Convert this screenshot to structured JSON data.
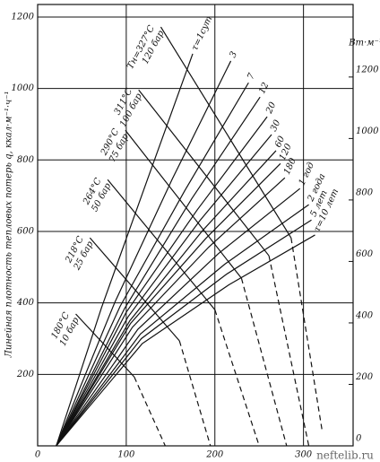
{
  "chart_data": {
    "type": "line",
    "ylabel": "Линейная плотность тепловых потерь q, ккал·м⁻¹·ч⁻¹",
    "y2label": "Вт·м⁻¹",
    "xlim": [
      0,
      356
    ],
    "ylim": [
      0,
      1235
    ],
    "y2lim": [
      0,
      1436
    ],
    "xticks": [
      0,
      100,
      200,
      300
    ],
    "yticks": [
      200,
      400,
      600,
      800,
      1000,
      1200
    ],
    "y2ticks": [
      0,
      200,
      400,
      600,
      800,
      1000,
      1200
    ],
    "grid": true,
    "color": "#111111",
    "series": [
      {
        "name": "τ=1сут",
        "x": [
          21,
          72,
          124,
          175
        ],
        "values": [
          0,
          386,
          746,
          1097
        ]
      },
      {
        "name": "3",
        "x": [
          21,
          87,
          152,
          218
        ],
        "values": [
          0,
          401,
          747,
          1077
        ]
      },
      {
        "name": "7",
        "x": [
          21,
          93,
          166,
          238
        ],
        "values": [
          0,
          390,
          714,
          1016
        ]
      },
      {
        "name": "12",
        "x": [
          21,
          98,
          174,
          251
        ],
        "values": [
          0,
          384,
          692,
          976
        ]
      },
      {
        "name": "20",
        "x": [
          21,
          100,
          180,
          259
        ],
        "values": [
          0,
          374,
          660,
          921
        ]
      },
      {
        "name": "30",
        "x": [
          21,
          102,
          183,
          264
        ],
        "values": [
          0,
          361,
          630,
          871
        ]
      },
      {
        "name": "60",
        "x": [
          21,
          104,
          186,
          269
        ],
        "values": [
          0,
          350,
          602,
          826
        ]
      },
      {
        "name": "120",
        "x": [
          21,
          105,
          190,
          274
        ],
        "values": [
          0,
          343,
          581,
          790
        ]
      },
      {
        "name": "180",
        "x": [
          21,
          107,
          193,
          279
        ],
        "values": [
          0,
          332,
          556,
          750
        ]
      },
      {
        "name": "1 год",
        "x": [
          21,
          113,
          204,
          296
        ],
        "values": [
          0,
          326,
          538,
          720
        ]
      },
      {
        "name": "2 года",
        "x": [
          21,
          116,
          211,
          306
        ],
        "values": [
          0,
          313,
          508,
          675
        ]
      },
      {
        "name": "5 лет",
        "x": [
          21,
          117,
          213,
          309
        ],
        "values": [
          0,
          300,
          480,
          632
        ]
      },
      {
        "name": "τ=10 лет",
        "x": [
          21,
          118,
          216,
          313
        ],
        "values": [
          0,
          286,
          451,
          590
        ]
      }
    ],
    "steam_lines": [
      {
        "name": "180°C",
        "pressure": "10 бар",
        "x": [
          43,
          109
        ],
        "values": [
          369,
          193
        ],
        "x_dashed": [
          109,
          144
        ],
        "values_dashed": [
          193,
          0
        ]
      },
      {
        "name": "218°C",
        "pressure": "25 бар",
        "x": [
          59,
          160
        ],
        "values": [
          582,
          294
        ],
        "x_dashed": [
          160,
          195
        ],
        "values_dashed": [
          294,
          0
        ]
      },
      {
        "name": "264°C",
        "pressure": "50 бар",
        "x": [
          79,
          200
        ],
        "values": [
          745,
          381
        ],
        "x_dashed": [
          200,
          250
        ],
        "values_dashed": [
          381,
          0
        ]
      },
      {
        "name": "290°C",
        "pressure": "75 бар",
        "x": [
          99,
          230
        ],
        "values": [
          883,
          469
        ],
        "x_dashed": [
          230,
          281
        ],
        "values_dashed": [
          469,
          0
        ]
      },
      {
        "name": "311°C",
        "pressure": "100 бар",
        "x": [
          114,
          261
        ],
        "values": [
          996,
          532
        ],
        "x_dashed": [
          261,
          306
        ],
        "values_dashed": [
          532,
          0
        ]
      },
      {
        "name": "Tн=327°C",
        "pressure": "120 бар",
        "x": [
          139,
          286
        ],
        "values": [
          1172,
          582
        ],
        "x_dashed": [
          286,
          321
        ],
        "values_dashed": [
          582,
          43
        ]
      }
    ]
  },
  "watermark": "neftelib.ru"
}
